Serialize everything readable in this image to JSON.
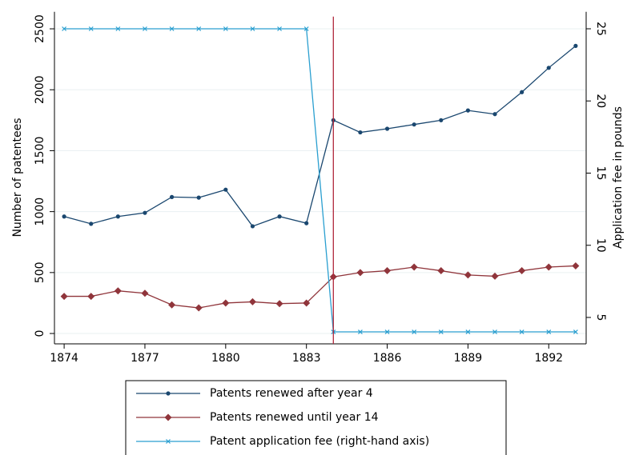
{
  "chart_data": {
    "type": "line",
    "x": [
      1874,
      1875,
      1876,
      1877,
      1878,
      1879,
      1880,
      1881,
      1882,
      1883,
      1884,
      1885,
      1886,
      1887,
      1888,
      1889,
      1890,
      1891,
      1892,
      1893
    ],
    "xlim": [
      1873.64,
      1893.39
    ],
    "xticks": [
      1874,
      1877,
      1880,
      1883,
      1886,
      1889,
      1892
    ],
    "ylabel": "Number of patentees",
    "ylim": [
      -85,
      2640
    ],
    "yticks": [
      0,
      500,
      1000,
      1500,
      2000,
      2500
    ],
    "y2label": "Application fee in pounds",
    "y2lim": [
      3.17,
      26.18
    ],
    "y2ticks": [
      5,
      10,
      15,
      20,
      25
    ],
    "grid": true,
    "vline": 1884,
    "vline_color": "#b0283c",
    "series": [
      {
        "name": "Patents renewed after year 4",
        "color": "#1a476f",
        "marker": "circle",
        "values": [
          960,
          900,
          960,
          990,
          1120,
          1115,
          1180,
          880,
          960,
          905,
          1750,
          1650,
          1680,
          1715,
          1750,
          1830,
          1800,
          1980,
          2180,
          2360
        ]
      },
      {
        "name": "Patents renewed until year 14",
        "color": "#90353b",
        "marker": "diamond",
        "values": [
          305,
          305,
          350,
          330,
          235,
          210,
          250,
          260,
          245,
          250,
          465,
          500,
          515,
          545,
          515,
          480,
          470,
          515,
          545,
          555
        ]
      },
      {
        "name": "Patent application fee (right-hand axis)",
        "color": "#2a9fd0",
        "marker": "x",
        "axis": "y2",
        "values": [
          25,
          25,
          25,
          25,
          25,
          25,
          25,
          25,
          25,
          25,
          4,
          4,
          4,
          4,
          4,
          4,
          4,
          4,
          4,
          4
        ]
      }
    ]
  }
}
